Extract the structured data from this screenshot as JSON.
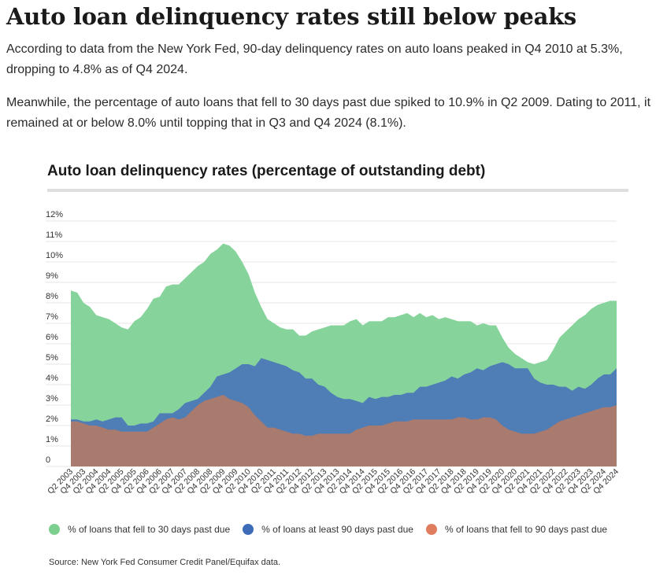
{
  "article": {
    "headline": "Auto loan delinquency rates still below peaks",
    "paragraph1": "According to data from the New York Fed, 90-day delinquency rates on auto loans peaked in Q4 2010 at 5.3%, dropping to 4.8% as of Q4 2024.",
    "paragraph2": "Meanwhile, the percentage of auto loans that fell to 30 days past due spiked to 10.9% in Q2 2009. Dating to 2011, it remained at or below 8.0% until topping that in Q3 and Q4 2024 (8.1%)."
  },
  "source": "Source: New York Fed Consumer Credit Panel/Equifax data.",
  "chart_data": {
    "type": "area",
    "title": "Auto loan delinquency rates (percentage of outstanding debt)",
    "xlabel": "",
    "ylabel": "",
    "ylim": [
      0,
      12
    ],
    "yticks": [
      "0",
      "1%",
      "2%",
      "3%",
      "4%",
      "5%",
      "6%",
      "7%",
      "8%",
      "9%",
      "10%",
      "11%",
      "12%"
    ],
    "grid": true,
    "legend_position": "bottom",
    "categories": [
      "Q2 2003",
      "Q3 2003",
      "Q4 2003",
      "Q1 2004",
      "Q2 2004",
      "Q3 2004",
      "Q4 2004",
      "Q1 2005",
      "Q2 2005",
      "Q3 2005",
      "Q4 2005",
      "Q1 2006",
      "Q2 2006",
      "Q3 2006",
      "Q4 2006",
      "Q1 2007",
      "Q2 2007",
      "Q3 2007",
      "Q4 2007",
      "Q1 2008",
      "Q2 2008",
      "Q3 2008",
      "Q4 2008",
      "Q1 2009",
      "Q2 2009",
      "Q3 2009",
      "Q4 2009",
      "Q1 2010",
      "Q2 2010",
      "Q3 2010",
      "Q4 2010",
      "Q1 2011",
      "Q2 2011",
      "Q3 2011",
      "Q4 2011",
      "Q1 2012",
      "Q2 2012",
      "Q3 2012",
      "Q4 2012",
      "Q1 2013",
      "Q2 2013",
      "Q3 2013",
      "Q4 2013",
      "Q1 2014",
      "Q2 2014",
      "Q3 2014",
      "Q4 2014",
      "Q1 2015",
      "Q2 2015",
      "Q3 2015",
      "Q4 2015",
      "Q1 2016",
      "Q2 2016",
      "Q3 2016",
      "Q4 2016",
      "Q1 2017",
      "Q2 2017",
      "Q3 2017",
      "Q4 2017",
      "Q1 2018",
      "Q2 2018",
      "Q3 2018",
      "Q4 2018",
      "Q1 2019",
      "Q2 2019",
      "Q3 2019",
      "Q4 2019",
      "Q1 2020",
      "Q2 2020",
      "Q3 2020",
      "Q4 2020",
      "Q1 2021",
      "Q2 2021",
      "Q3 2021",
      "Q4 2021",
      "Q1 2022",
      "Q2 2022",
      "Q3 2022",
      "Q4 2022",
      "Q1 2023",
      "Q2 2023",
      "Q3 2023",
      "Q4 2023",
      "Q1 2024",
      "Q2 2024",
      "Q3 2024",
      "Q4 2024"
    ],
    "tick_labels": [
      "Q2 2003",
      "Q4 2003",
      "Q2 2004",
      "Q4 2004",
      "Q2 2005",
      "Q4 2005",
      "Q2 2006",
      "Q4 2006",
      "Q2 2007",
      "Q4 2007",
      "Q2 2008",
      "Q4 2008",
      "Q2 2009",
      "Q4 2009",
      "Q2 2010",
      "Q4 2010",
      "Q2 2011",
      "Q4 2011",
      "Q2 2012",
      "Q4 2012",
      "Q2 2013",
      "Q4 2013",
      "Q2 2014",
      "Q4 2014",
      "Q2 2015",
      "Q4 2015",
      "Q2 2016",
      "Q4 2016",
      "Q2 2017",
      "Q4 2017",
      "Q2 2018",
      "Q4 2018",
      "Q2 2019",
      "Q4 2019",
      "Q2 2020",
      "Q4 2020",
      "Q2 2021",
      "Q4 2021",
      "Q2 2022",
      "Q4 2022",
      "Q2 2023",
      "Q4 2023",
      "Q2 2024",
      "Q4 2024"
    ],
    "series": [
      {
        "name": "% of loans that fell to 30 days past due",
        "color": "#86d49c",
        "values": [
          8.6,
          8.5,
          8.0,
          7.8,
          7.4,
          7.3,
          7.2,
          7.0,
          6.8,
          6.7,
          7.1,
          7.3,
          7.7,
          8.2,
          8.3,
          8.8,
          8.9,
          8.9,
          9.2,
          9.5,
          9.8,
          10.0,
          10.4,
          10.6,
          10.9,
          10.8,
          10.5,
          10.0,
          9.4,
          8.5,
          7.8,
          7.2,
          7.0,
          6.8,
          6.7,
          6.7,
          6.4,
          6.4,
          6.6,
          6.7,
          6.8,
          6.9,
          6.9,
          6.9,
          7.1,
          7.2,
          6.9,
          7.1,
          7.1,
          7.1,
          7.3,
          7.3,
          7.4,
          7.5,
          7.3,
          7.5,
          7.3,
          7.4,
          7.2,
          7.3,
          7.2,
          7.1,
          7.1,
          7.1,
          6.9,
          7.0,
          6.9,
          6.9,
          6.3,
          5.8,
          5.5,
          5.3,
          5.1,
          5.0,
          5.1,
          5.2,
          5.7,
          6.3,
          6.6,
          6.9,
          7.2,
          7.4,
          7.7,
          7.9,
          8.0,
          8.1,
          8.1
        ]
      },
      {
        "name": "% of loans at least 90 days past due",
        "color": "#4f7db5",
        "values": [
          2.3,
          2.3,
          2.2,
          2.2,
          2.3,
          2.2,
          2.3,
          2.4,
          2.4,
          2.0,
          2.0,
          2.1,
          2.1,
          2.2,
          2.6,
          2.6,
          2.6,
          2.8,
          3.1,
          3.2,
          3.3,
          3.6,
          3.9,
          4.4,
          4.5,
          4.6,
          4.8,
          5.0,
          5.0,
          4.9,
          5.3,
          5.2,
          5.1,
          5.0,
          4.9,
          4.7,
          4.6,
          4.3,
          4.3,
          4.0,
          3.9,
          3.6,
          3.4,
          3.3,
          3.3,
          3.2,
          3.1,
          3.4,
          3.3,
          3.4,
          3.4,
          3.5,
          3.5,
          3.6,
          3.6,
          3.9,
          3.9,
          4.0,
          4.1,
          4.2,
          4.4,
          4.3,
          4.5,
          4.6,
          4.8,
          4.7,
          4.9,
          5.0,
          5.1,
          5.0,
          4.8,
          4.8,
          4.8,
          4.3,
          4.1,
          4.0,
          4.0,
          3.9,
          3.9,
          3.7,
          3.9,
          3.8,
          4.0,
          4.3,
          4.5,
          4.5,
          4.8
        ]
      },
      {
        "name": "% of loans that fell to 90 days past due",
        "color": "#a97a6e",
        "values": [
          2.2,
          2.2,
          2.1,
          2.0,
          2.0,
          1.9,
          1.8,
          1.8,
          1.7,
          1.7,
          1.7,
          1.7,
          1.7,
          1.9,
          2.1,
          2.3,
          2.4,
          2.3,
          2.4,
          2.7,
          3.0,
          3.2,
          3.3,
          3.4,
          3.5,
          3.3,
          3.2,
          3.1,
          2.9,
          2.5,
          2.2,
          1.9,
          1.9,
          1.8,
          1.7,
          1.6,
          1.6,
          1.5,
          1.5,
          1.6,
          1.6,
          1.6,
          1.6,
          1.6,
          1.6,
          1.8,
          1.9,
          2.0,
          2.0,
          2.0,
          2.1,
          2.2,
          2.2,
          2.2,
          2.3,
          2.3,
          2.3,
          2.3,
          2.3,
          2.3,
          2.3,
          2.4,
          2.4,
          2.3,
          2.3,
          2.4,
          2.4,
          2.3,
          2.0,
          1.8,
          1.7,
          1.6,
          1.6,
          1.6,
          1.7,
          1.8,
          2.0,
          2.2,
          2.3,
          2.4,
          2.5,
          2.6,
          2.7,
          2.8,
          2.9,
          2.9,
          3.0
        ]
      }
    ]
  }
}
